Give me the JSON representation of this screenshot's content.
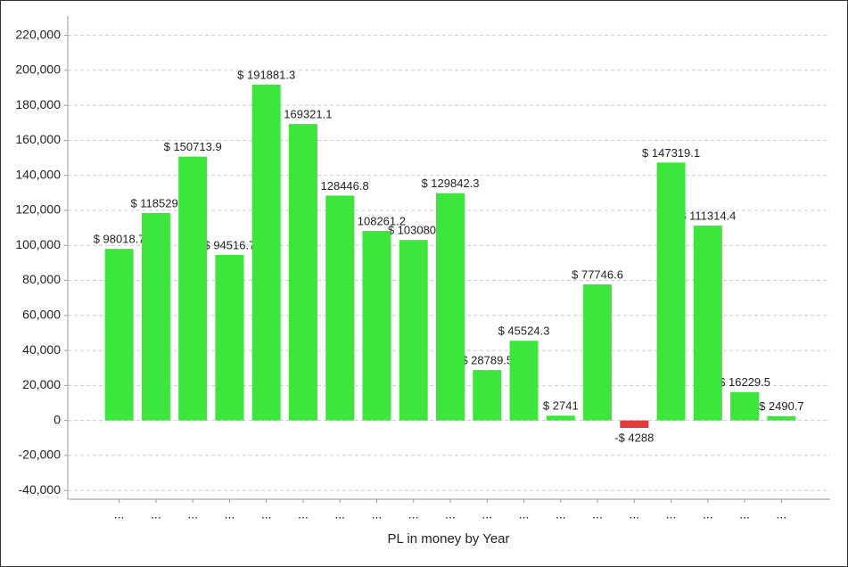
{
  "chart_data": {
    "type": "bar",
    "x_label": "PL in money by Year",
    "categories": [
      "...",
      "...",
      "...",
      "...",
      "...",
      "...",
      "...",
      "...",
      "...",
      "...",
      "...",
      "...",
      "...",
      "...",
      "...",
      "...",
      "...",
      "...",
      "..."
    ],
    "values": [
      98018.7,
      118529,
      150713.9,
      94516.7,
      191881.3,
      169321.1,
      128446.8,
      108261.2,
      103080,
      129842.3,
      28789.5,
      45524.3,
      2741,
      77746.6,
      -4288,
      147319.1,
      111314.4,
      16229.5,
      2490.7
    ],
    "value_labels": [
      "$ 98018.7",
      "$ 118529.",
      "$ 150713.9",
      "$ 94516.7",
      "$ 191881.3",
      "$ 169321.1",
      "$ 128446.8",
      "$ 108261.2",
      "$ 103080.",
      "$ 129842.3",
      "$ 28789.5",
      "$ 45524.3",
      "$ 2741",
      "$ 77746.6",
      "-$ 4288",
      "$ 147319.1",
      "$ 111314.4",
      "$ 16229.5",
      "$ 2490.7"
    ],
    "color": "#3de63d",
    "negative_color": "#e03c3c",
    "ylim": [
      -45000,
      231000
    ],
    "yticks": [
      {
        "value": -40000,
        "label": "-40,000"
      },
      {
        "value": -20000,
        "label": "-20,000"
      },
      0,
      {
        "value": 20000,
        "label": "20,000"
      },
      {
        "value": 40000,
        "label": "40,000"
      },
      {
        "value": 60000,
        "label": "60,000"
      },
      {
        "value": 80000,
        "label": "80,000"
      },
      {
        "value": 100000,
        "label": "100,000"
      },
      {
        "value": 120000,
        "label": "120,000"
      },
      {
        "value": 140000,
        "label": "140,000"
      },
      {
        "value": 160000,
        "label": "160,000"
      },
      {
        "value": 180000,
        "label": "180,000"
      },
      {
        "value": 200000,
        "label": "200,000"
      },
      {
        "value": 220000,
        "label": "220,000"
      }
    ],
    "grid": true
  }
}
